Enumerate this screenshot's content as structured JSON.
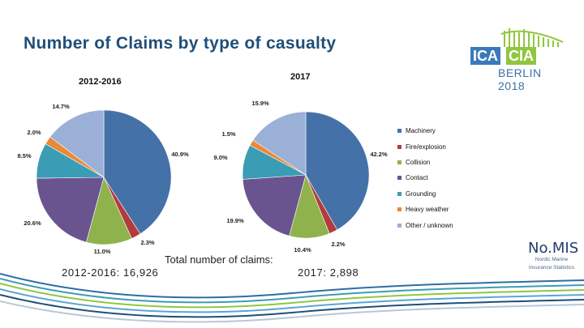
{
  "page": {
    "title": "Number of Claims by type of casualty",
    "total_label": "Total number of claims:",
    "total_2012_2016": "2012-2016:  16,926",
    "total_2017": "2017:  2,898"
  },
  "logos": {
    "ica": "ICA",
    "cia": "CIA",
    "berlin": "BERLIN 2018",
    "nomis": "No.MIS",
    "nomis_sub_line1": "Nordic Marine",
    "nomis_sub_line2": "Insurance Statistics"
  },
  "colors": {
    "Machinery": "#4472a8",
    "Fire/Explosion": "#b23b3b",
    "Collision": "#8fb24d",
    "Contact": "#6a548f",
    "Grounding": "#3b9cb5",
    "Heavy weather": "#e88a3a",
    "Other / unknown": "#9bb0d6"
  },
  "chart_data": [
    {
      "type": "pie",
      "title": "2012-2016",
      "legend_position": "right",
      "categories": [
        "Machinery",
        "Fire/Explosion",
        "Collision",
        "Contact",
        "Grounding",
        "Heavy weather",
        "Other / unknown"
      ],
      "values": [
        40.9,
        2.3,
        11.0,
        20.6,
        8.5,
        2.0,
        14.7
      ],
      "labels": [
        "40.9%",
        "2.3%",
        "11.0%",
        "20.6%",
        "8.5%",
        "2.0%",
        "14.7%"
      ]
    },
    {
      "type": "pie",
      "title": "2017",
      "legend_position": "right",
      "categories": [
        "Machinery",
        "Fire/Explosion",
        "Collision",
        "Contact",
        "Grounding",
        "Heavy weather",
        "Other / unknown"
      ],
      "values": [
        42.2,
        2.2,
        10.4,
        19.9,
        9.0,
        1.5,
        15.9
      ],
      "labels": [
        "42.2%",
        "2.2%",
        "10.4%",
        "19.9%",
        "9.0%",
        "1.5%",
        "15.9%"
      ]
    }
  ],
  "legend": {
    "items": [
      "Machinery",
      "Fire/explosion",
      "Collision",
      "Contact",
      "Grounding",
      "Heavy weather",
      "Other / unknown"
    ]
  }
}
